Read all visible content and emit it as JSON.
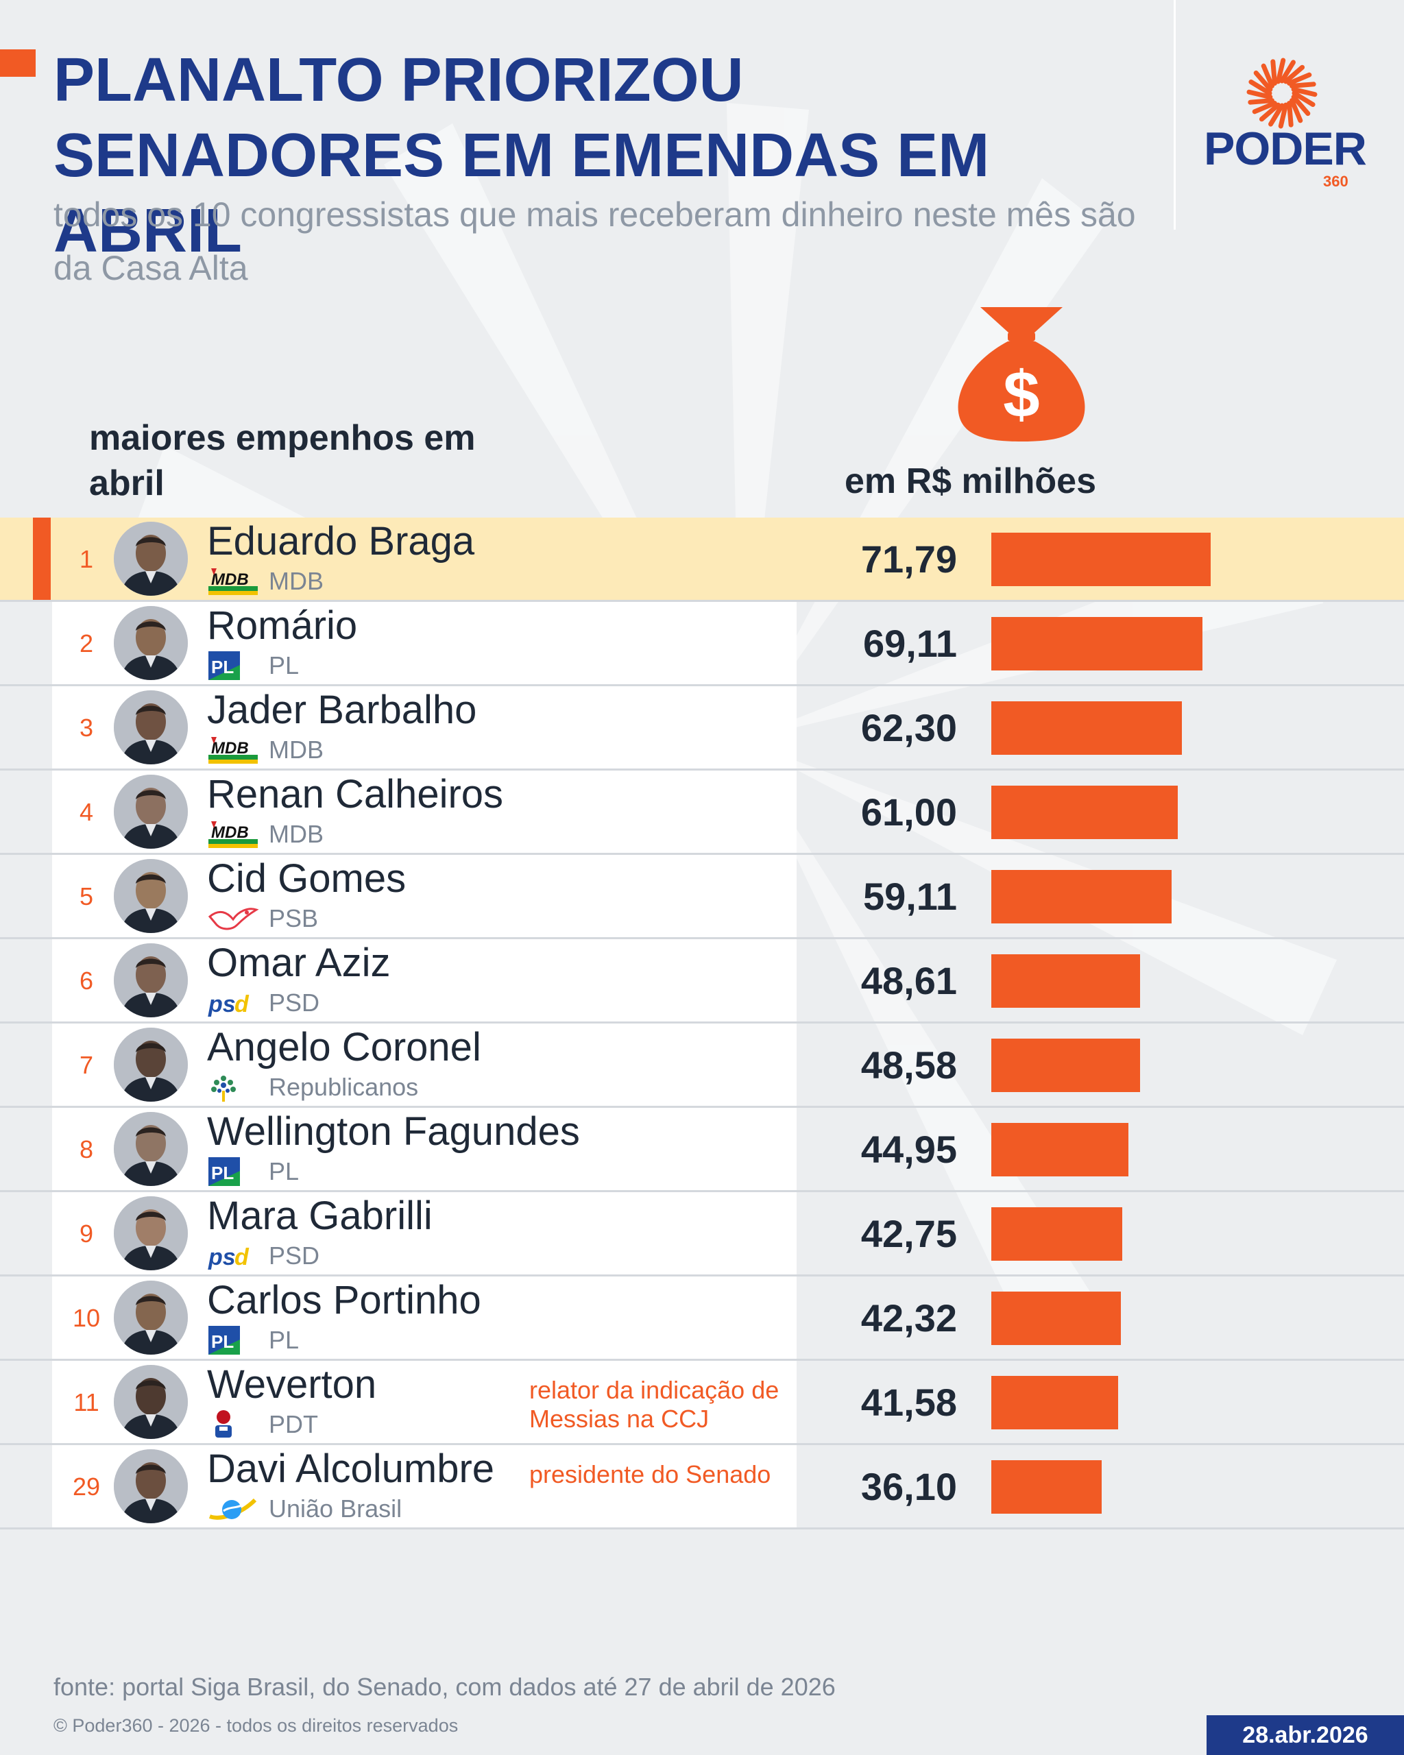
{
  "header": {
    "title": "PLANALTO PRIORIZOU SENADORES EM EMENDAS EM ABRIL",
    "subtitle": "todos os 10 congressistas que mais receberam dinheiro neste mês são da Casa Alta",
    "logo_word": "PODER",
    "logo_number": "360"
  },
  "colors": {
    "title": "#1e3a8a",
    "accent": "#f15a24",
    "highlight_row": "#fdeab8",
    "background": "#eceef0"
  },
  "chart_data": {
    "type": "bar",
    "orientation": "horizontal",
    "list_heading": "maiores empenhos em abril",
    "unit_label": "em R$ milhões",
    "xlim": [
      0,
      71.79
    ],
    "highlight_rank": "1",
    "categories": [
      "Eduardo Braga",
      "Romário",
      "Jader Barbalho",
      "Renan Calheiros",
      "Cid Gomes",
      "Omar Aziz",
      "Angelo Coronel",
      "Wellington Fagundes",
      "Mara Gabrilli",
      "Carlos Portinho",
      "Weverton",
      "Davi Alcolumbre"
    ],
    "values": [
      71.79,
      69.11,
      62.3,
      61.0,
      59.11,
      48.61,
      48.58,
      44.95,
      42.75,
      42.32,
      41.58,
      36.1
    ],
    "rows": [
      {
        "rank": "1",
        "name": "Eduardo Braga",
        "party": "MDB",
        "party_logo": "mdb-logo",
        "value": 71.79,
        "value_label": "71,79",
        "note": ""
      },
      {
        "rank": "2",
        "name": "Romário",
        "party": "PL",
        "party_logo": "pl-logo",
        "value": 69.11,
        "value_label": "69,11",
        "note": ""
      },
      {
        "rank": "3",
        "name": "Jader Barbalho",
        "party": "MDB",
        "party_logo": "mdb-logo",
        "value": 62.3,
        "value_label": "62,30",
        "note": ""
      },
      {
        "rank": "4",
        "name": "Renan Calheiros",
        "party": "MDB",
        "party_logo": "mdb-logo",
        "value": 61.0,
        "value_label": "61,00",
        "note": ""
      },
      {
        "rank": "5",
        "name": "Cid Gomes",
        "party": "PSB",
        "party_logo": "psb-logo",
        "value": 59.11,
        "value_label": "59,11",
        "note": ""
      },
      {
        "rank": "6",
        "name": "Omar Aziz",
        "party": "PSD",
        "party_logo": "psd-logo",
        "value": 48.61,
        "value_label": "48,61",
        "note": ""
      },
      {
        "rank": "7",
        "name": "Angelo Coronel",
        "party": "Republicanos",
        "party_logo": "republicanos-logo",
        "value": 48.58,
        "value_label": "48,58",
        "note": ""
      },
      {
        "rank": "8",
        "name": "Wellington Fagundes",
        "party": "PL",
        "party_logo": "pl-logo",
        "value": 44.95,
        "value_label": "44,95",
        "note": ""
      },
      {
        "rank": "9",
        "name": "Mara Gabrilli",
        "party": "PSD",
        "party_logo": "psd-logo",
        "value": 42.75,
        "value_label": "42,75",
        "note": ""
      },
      {
        "rank": "10",
        "name": "Carlos Portinho",
        "party": "PL",
        "party_logo": "pl-logo",
        "value": 42.32,
        "value_label": "42,32",
        "note": ""
      },
      {
        "rank": "11",
        "name": "Weverton",
        "party": "PDT",
        "party_logo": "pdt-logo",
        "value": 41.58,
        "value_label": "41,58",
        "note": "relator da indicação de Messias na CCJ"
      },
      {
        "rank": "29",
        "name": "Davi Alcolumbre",
        "party": "União Brasil",
        "party_logo": "uniao-brasil-logo",
        "value": 36.1,
        "value_label": "36,10",
        "note": "presidente do Senado"
      }
    ]
  },
  "footer": {
    "source": "fonte: portal Siga Brasil, do Senado, com dados até 27 de abril de 2026",
    "copyright": "© Poder360 - 2026 - todos os direitos reservados",
    "date": "28.abr.2026"
  }
}
